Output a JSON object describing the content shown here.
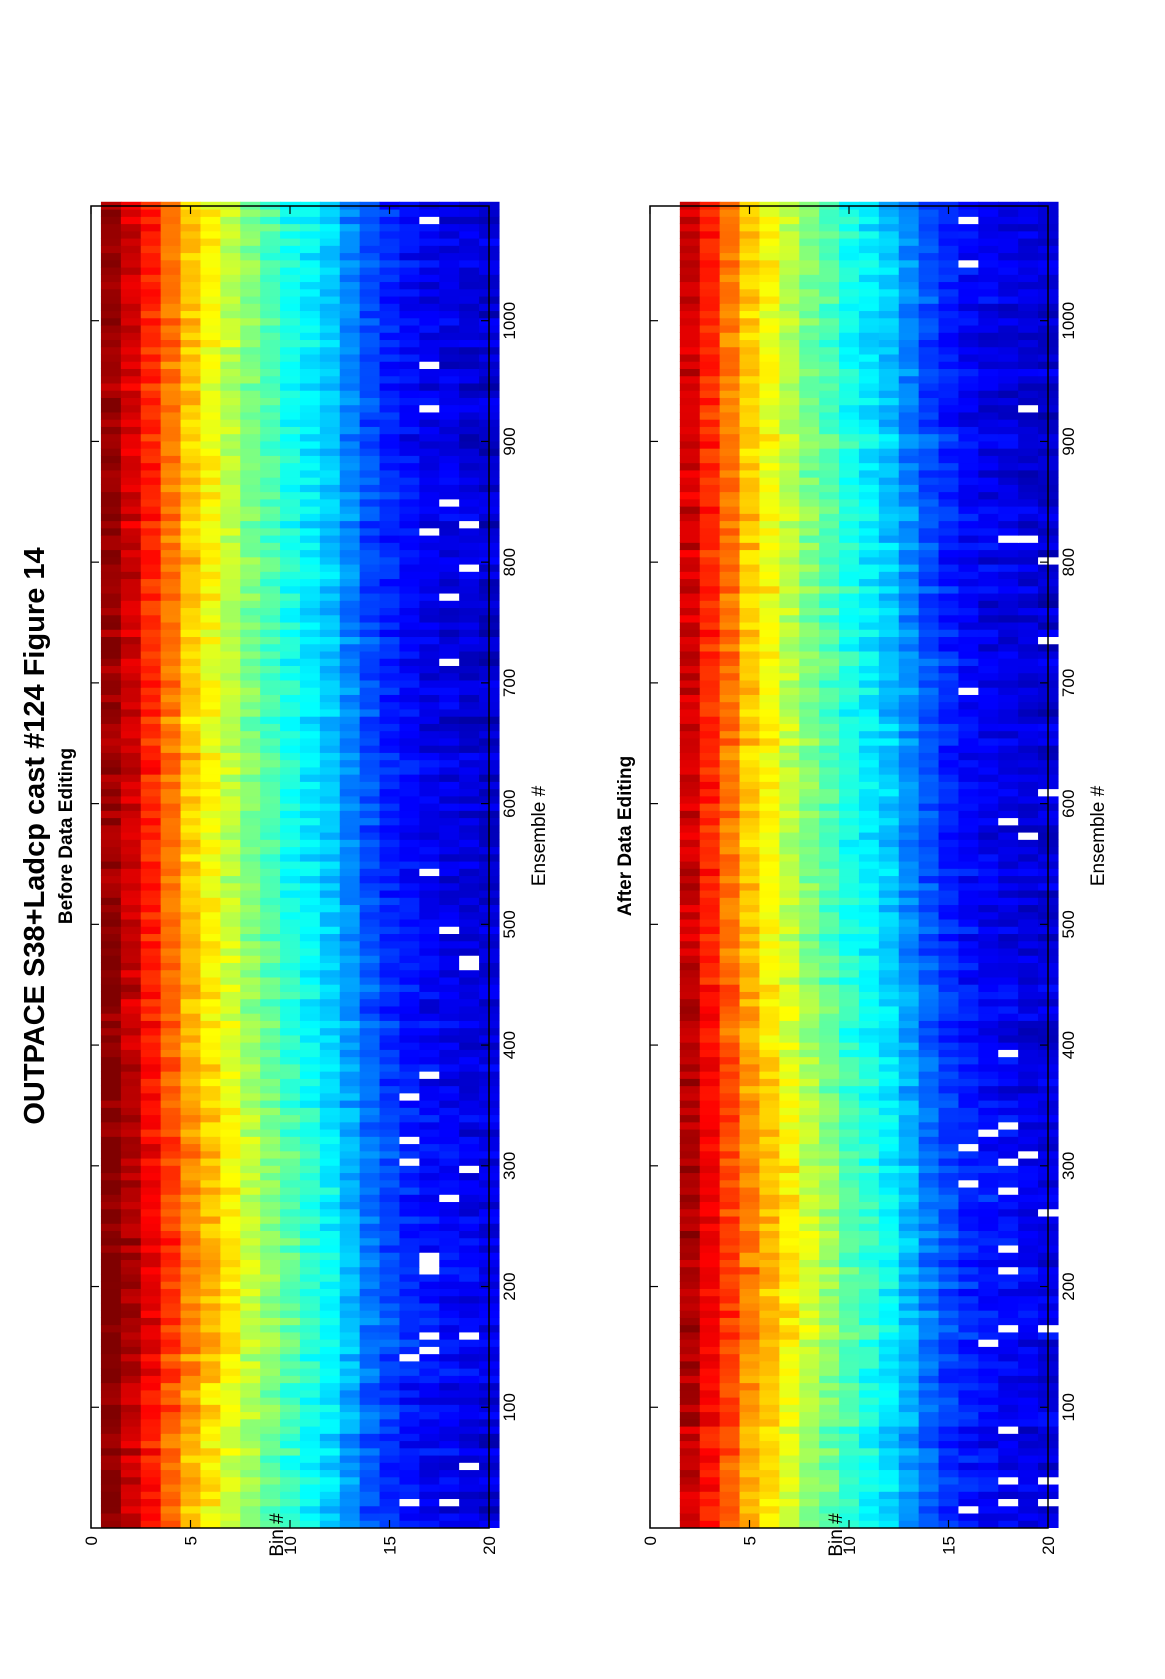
{
  "figure": {
    "title": "OUTPACE S38+Ladcp cast #124  Figure 14"
  },
  "chart_data": [
    {
      "type": "heatmap",
      "title": "Before Data Editing",
      "xlabel": "Ensemble #",
      "ylabel": "Bin #",
      "xlim": [
        0,
        1095
      ],
      "ylim": [
        0,
        20
      ],
      "xticks": [
        100,
        200,
        300,
        400,
        500,
        600,
        700,
        800,
        900,
        1000
      ],
      "yticks": [
        0,
        5,
        10,
        15,
        20
      ],
      "colormap": "jet",
      "bins": [
        1,
        2,
        3,
        4,
        5,
        6,
        7,
        8,
        9,
        10,
        11,
        12,
        13,
        14,
        15,
        16,
        17,
        18,
        19,
        20
      ],
      "bin_profile": [
        0.98,
        0.92,
        0.84,
        0.76,
        0.68,
        0.62,
        0.56,
        0.5,
        0.45,
        0.4,
        0.36,
        0.32,
        0.26,
        0.2,
        0.16,
        0.13,
        0.11,
        0.1,
        0.09,
        0.08
      ],
      "first_bin_shown": 1
    },
    {
      "type": "heatmap",
      "title": "After Data Editing",
      "xlabel": "Ensemble #",
      "ylabel": "Bin #",
      "xlim": [
        0,
        1095
      ],
      "ylim": [
        0,
        20
      ],
      "xticks": [
        100,
        200,
        300,
        400,
        500,
        600,
        700,
        800,
        900,
        1000
      ],
      "yticks": [
        0,
        5,
        10,
        15,
        20
      ],
      "colormap": "jet",
      "bins": [
        2,
        3,
        4,
        5,
        6,
        7,
        8,
        9,
        10,
        11,
        12,
        13,
        14,
        15,
        16,
        17,
        18,
        19,
        20
      ],
      "bin_profile": [
        0.92,
        0.84,
        0.76,
        0.68,
        0.62,
        0.56,
        0.5,
        0.45,
        0.4,
        0.36,
        0.32,
        0.26,
        0.2,
        0.16,
        0.13,
        0.11,
        0.1,
        0.09,
        0.08
      ],
      "first_bin_shown": 2
    }
  ]
}
